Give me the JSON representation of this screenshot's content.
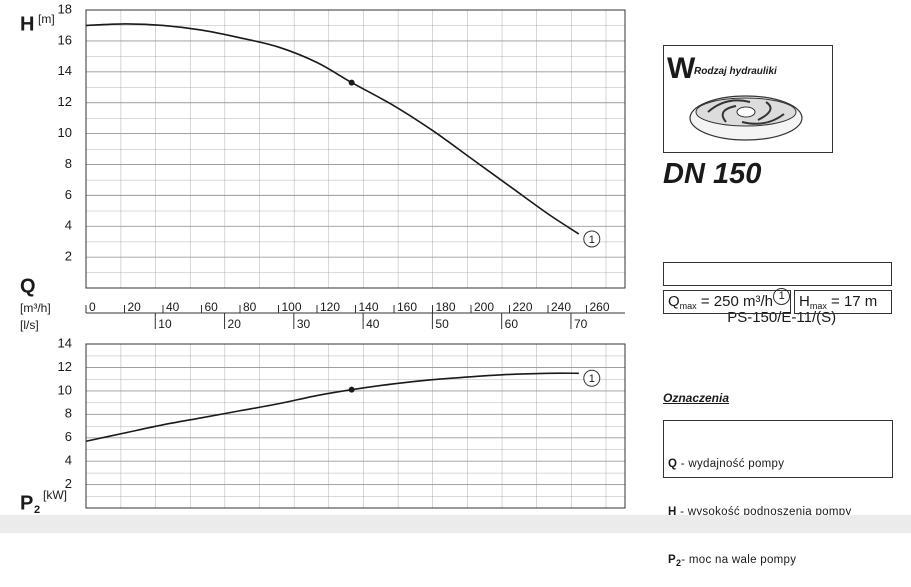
{
  "chart_data": [
    {
      "type": "line",
      "y_symbol": "H",
      "y_unit": "[m]",
      "x_symbol": "Q",
      "x_unit": "[m³/h]",
      "x2_unit": "[l/s]",
      "x": [
        0,
        20,
        40,
        60,
        80,
        100,
        120,
        138,
        160,
        180,
        200,
        220,
        240,
        256
      ],
      "series": [
        {
          "name": "1",
          "color": "#1a1a1a",
          "values": [
            17.0,
            17.1,
            17.0,
            16.7,
            16.2,
            15.6,
            14.6,
            13.3,
            11.8,
            10.2,
            8.4,
            6.6,
            4.8,
            3.5
          ]
        }
      ],
      "operating_point": {
        "x": 138,
        "value": 13.3
      },
      "xlim": [
        0,
        280
      ],
      "xticks": [
        0,
        20,
        40,
        60,
        80,
        100,
        120,
        140,
        160,
        180,
        200,
        220,
        240,
        260
      ],
      "x2lim": [
        0,
        77.8
      ],
      "x2ticks": [
        10,
        20,
        30,
        40,
        50,
        60,
        70
      ],
      "ylim": [
        0,
        18
      ],
      "yticks": [
        2,
        4,
        6,
        8,
        10,
        12,
        14,
        16,
        18
      ],
      "grid": true
    },
    {
      "type": "line",
      "y_symbol": "P",
      "y_symbol_sub": "2",
      "y_unit": "[kW]",
      "x": [
        0,
        20,
        40,
        60,
        80,
        100,
        120,
        138,
        160,
        180,
        200,
        220,
        240,
        256
      ],
      "series": [
        {
          "name": "1",
          "color": "#1a1a1a",
          "values": [
            5.7,
            6.4,
            7.1,
            7.7,
            8.3,
            8.9,
            9.6,
            10.1,
            10.6,
            10.95,
            11.2,
            11.4,
            11.5,
            11.5
          ]
        }
      ],
      "operating_point": {
        "x": 138,
        "value": 10.1
      },
      "xlim": [
        0,
        280
      ],
      "ylim": [
        0,
        14
      ],
      "yticks": [
        2,
        4,
        6,
        8,
        10,
        12,
        14
      ],
      "grid": true
    }
  ],
  "hydraulics": {
    "letter": "W",
    "label": "Rodzaj hydrauliki"
  },
  "dn": "DN 150",
  "model": {
    "marker": "1",
    "name": "PS-150/E-11/(S)"
  },
  "specs": [
    {
      "symbol": "Q",
      "sub": "max",
      "text": " = 250 m³/h"
    },
    {
      "symbol": "H",
      "sub": "max",
      "text": " = 17 m"
    }
  ],
  "legend": {
    "title": "Oznaczenia",
    "items": [
      {
        "symbol": "Q",
        "text": " - wydajność pompy"
      },
      {
        "symbol": "H",
        "text": " - wysokość podnoszenia pompy"
      },
      {
        "symbol": "P",
        "sub": "2",
        "text": "- moc na wale pompy"
      }
    ]
  }
}
